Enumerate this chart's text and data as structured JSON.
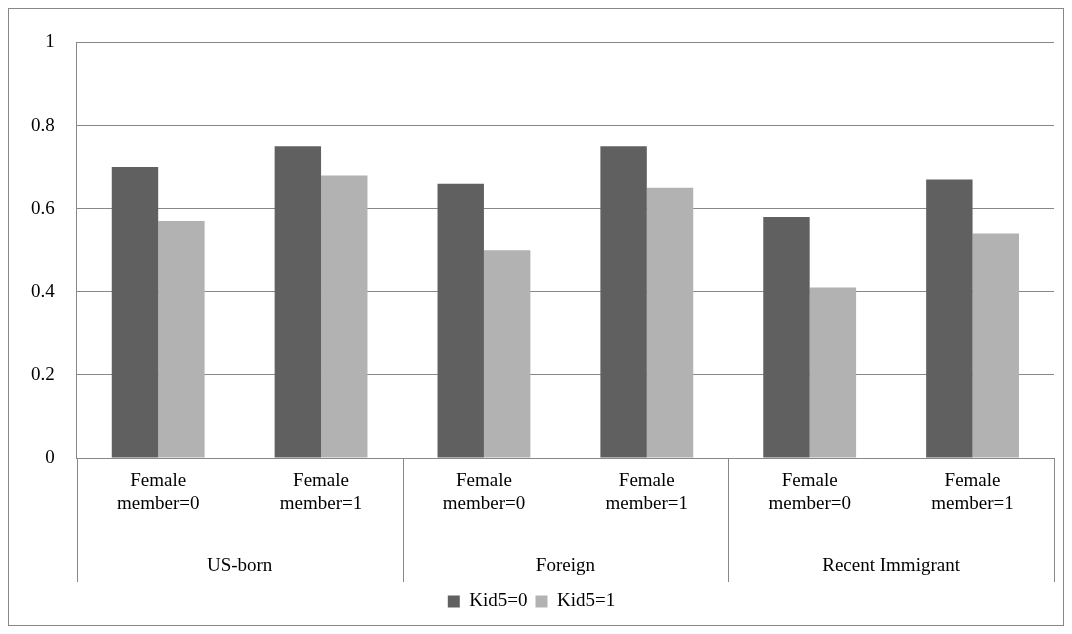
{
  "chart_data": {
    "type": "bar",
    "categories": [
      "Female member=0",
      "Female member=1",
      "Female member=0",
      "Female member=1",
      "Female member=0",
      "Female member=1"
    ],
    "series": [
      {
        "name": "Kid5=0",
        "color": "#606060",
        "values": [
          0.7,
          0.75,
          0.66,
          0.75,
          0.58,
          0.67
        ]
      },
      {
        "name": "Kid5=1",
        "color": "#b2b2b2",
        "values": [
          0.57,
          0.68,
          0.5,
          0.65,
          0.41,
          0.54
        ]
      }
    ],
    "annotations": [
      "US-born",
      "Foreign",
      "Recent Immigrant"
    ],
    "ylim": [
      0,
      1
    ],
    "yticks": [
      0,
      0.2,
      0.4,
      0.6,
      0.8,
      1
    ],
    "grid": "y",
    "legend": "bottom"
  }
}
